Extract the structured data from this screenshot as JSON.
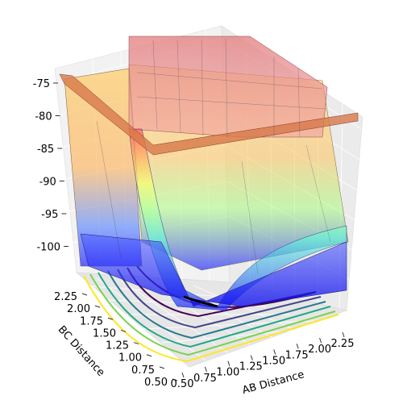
{
  "chart_data": {
    "type": "surface",
    "title": "",
    "xlabel": "AB Distance",
    "ylabel": "BC Distance",
    "zlabel": "",
    "xticks": [
      "0.50",
      "0.75",
      "1.00",
      "1.25",
      "1.50",
      "1.75",
      "2.00",
      "2.25"
    ],
    "yticks": [
      "0.50",
      "0.75",
      "1.00",
      "1.25",
      "1.50",
      "1.75",
      "2.00",
      "2.25"
    ],
    "zticks": [
      "-75",
      "-80",
      "-85",
      "-90",
      "-95",
      "-100"
    ],
    "xlim": [
      0.5,
      2.4
    ],
    "ylim": [
      0.5,
      2.4
    ],
    "zlim": [
      -104,
      -74
    ],
    "colormap": "jet (semi-transparent surface)",
    "contour_colormap": "viridis",
    "contour_levels_count": 6,
    "colors": {
      "surface_low": "#1f1fff",
      "surface_mid": "#5fffd8",
      "surface_high": "#ff6f6f",
      "surface_edge": "#ff9a55",
      "trajectory": "#000000"
    },
    "grid": true,
    "series": [
      {
        "kind": "trajectory",
        "points": [
          [
            0.9,
            2.1
          ],
          [
            1.0,
            1.6
          ],
          [
            1.05,
            1.1
          ],
          [
            1.3,
            0.95
          ],
          [
            1.7,
            0.9
          ]
        ]
      }
    ]
  }
}
